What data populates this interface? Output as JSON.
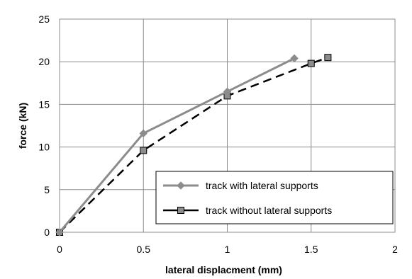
{
  "chart_data": {
    "type": "line",
    "xlabel": "lateral displacment (mm)",
    "ylabel": "force (kN)",
    "xlim": [
      0,
      2
    ],
    "ylim": [
      0,
      25
    ],
    "xticks": [
      0,
      0.5,
      1,
      1.5,
      2
    ],
    "yticks": [
      0,
      5,
      10,
      15,
      20,
      25
    ],
    "xtick_labels": [
      "0",
      "0.5",
      "1",
      "1.5",
      "2"
    ],
    "ytick_labels": [
      "0",
      "5",
      "10",
      "15",
      "20",
      "25"
    ],
    "grid": true,
    "legend_position": "bottom-right",
    "series": [
      {
        "name": "track with lateral supports",
        "color": "#8c8c8c",
        "line_style": "solid",
        "marker": "diamond",
        "x": [
          0,
          0.5,
          1,
          1.4
        ],
        "y": [
          0,
          11.6,
          16.5,
          20.4
        ]
      },
      {
        "name": "track without lateral supports",
        "color": "#000000",
        "marker_fill": "#8c8c8c",
        "line_style": "dashed",
        "marker": "square",
        "x": [
          0,
          0.5,
          1,
          1.5,
          1.6
        ],
        "y": [
          0,
          9.6,
          16.0,
          19.8,
          20.5
        ]
      }
    ]
  }
}
